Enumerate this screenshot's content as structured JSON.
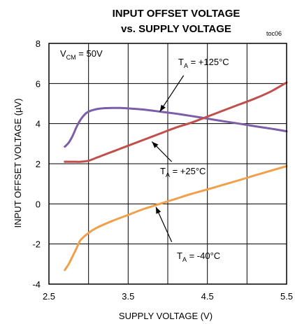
{
  "chart_data": {
    "type": "line",
    "title_line1": "INPUT OFFSET VOLTAGE",
    "title_line2": "vs. SUPPLY VOLTAGE",
    "figure_code": "toc06",
    "xlabel": "SUPPLY VOLTAGE (V)",
    "ylabel": "INPUT OFFSET VOLTAGE (µV)",
    "xlim": [
      2.5,
      5.5
    ],
    "ylim": [
      -4,
      8
    ],
    "xticks": [
      "2.5",
      "3.5",
      "4.5",
      "5.5"
    ],
    "xtick_values": [
      2.5,
      3.5,
      4.5,
      5.5
    ],
    "yticks": [
      "8",
      "6",
      "4",
      "2",
      "0",
      "-2",
      "-4"
    ],
    "ytick_values": [
      8,
      6,
      4,
      2,
      0,
      -2,
      -4
    ],
    "grid": true,
    "condition": {
      "main": "V",
      "sub": "CM",
      "rest": " = 50V"
    },
    "series": [
      {
        "label_main": "T",
        "label_sub": "A",
        "label_rest": " = +125°C",
        "color": "#7b5ea7",
        "x": [
          2.7,
          2.75,
          2.8,
          2.85,
          2.9,
          2.95,
          3.0,
          3.1,
          3.2,
          3.3,
          3.4,
          3.5,
          3.7,
          3.9,
          4.1,
          4.3,
          4.5,
          4.7,
          4.9,
          5.1,
          5.3,
          5.5
        ],
        "y": [
          2.85,
          3.05,
          3.4,
          3.85,
          4.2,
          4.45,
          4.6,
          4.72,
          4.77,
          4.78,
          4.78,
          4.76,
          4.7,
          4.6,
          4.5,
          4.38,
          4.25,
          4.12,
          4.0,
          3.87,
          3.75,
          3.62
        ]
      },
      {
        "label_main": "T",
        "label_sub": "A",
        "label_rest": " = +25°C",
        "color": "#c0504d",
        "x": [
          2.7,
          2.8,
          2.9,
          3.0,
          3.1,
          3.2,
          3.3,
          3.4,
          3.5,
          3.7,
          3.9,
          4.1,
          4.3,
          4.5,
          4.7,
          4.9,
          5.1,
          5.3,
          5.5
        ],
        "y": [
          2.1,
          2.1,
          2.1,
          2.15,
          2.3,
          2.45,
          2.6,
          2.75,
          2.9,
          3.2,
          3.5,
          3.8,
          4.05,
          4.35,
          4.65,
          4.95,
          5.25,
          5.6,
          6.05
        ]
      },
      {
        "label_main": "T",
        "label_sub": "A",
        "label_rest": " = -40°C",
        "color": "#f0a04b",
        "x": [
          2.7,
          2.75,
          2.8,
          2.85,
          2.9,
          3.0,
          3.1,
          3.3,
          3.5,
          3.7,
          3.9,
          4.1,
          4.3,
          4.5,
          4.7,
          4.9,
          5.1,
          5.3,
          5.5
        ],
        "y": [
          -3.3,
          -3.0,
          -2.6,
          -2.2,
          -1.8,
          -1.45,
          -1.2,
          -0.85,
          -0.55,
          -0.25,
          0.0,
          0.25,
          0.5,
          0.72,
          0.95,
          1.18,
          1.42,
          1.65,
          1.88
        ]
      }
    ]
  }
}
